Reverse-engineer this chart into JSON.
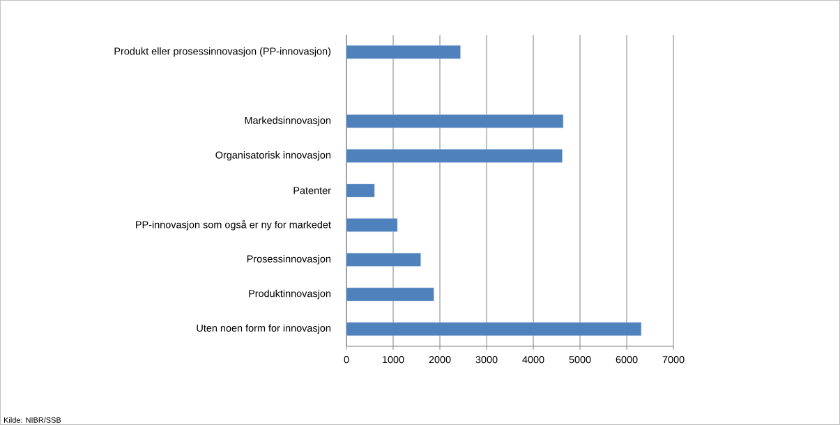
{
  "chart_data": {
    "type": "bar",
    "orientation": "horizontal",
    "categories": [
      "Produkt eller prosessinnovasjon (PP-innovasjon)",
      null,
      "Markedsinnovasjon",
      "Organisatorisk innovasjon",
      "Patenter",
      "PP-innovasjon som også er ny for markedet",
      "Prosessinnovasjon",
      "Produktinnovasjon",
      "Uten noen form for innovasjon"
    ],
    "values": [
      2440,
      null,
      4640,
      4620,
      600,
      1090,
      1590,
      1870,
      6310
    ],
    "color": "#4f81bd",
    "xlim": [
      0,
      7000
    ],
    "xticks": [
      0,
      1000,
      2000,
      3000,
      4000,
      5000,
      6000,
      7000
    ],
    "grid": "x",
    "annotations": [
      "Kilde: NIBR/SSB"
    ]
  }
}
